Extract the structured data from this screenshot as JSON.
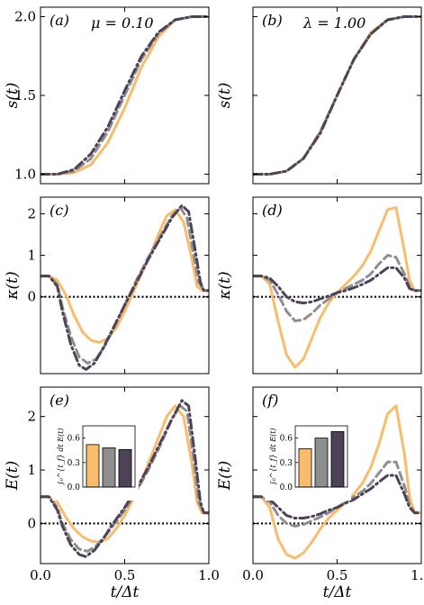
{
  "chart_data": [
    {
      "panel": "(a)",
      "annotation": "μ = 0.10",
      "type": "line",
      "ylabel": "s(t)",
      "xlim": [
        0,
        1
      ],
      "ylim": [
        0.94,
        2.06
      ],
      "yticks": [
        1.0,
        1.5,
        2.0
      ],
      "ytick_labels": [
        "1.0",
        "1.5",
        "2.0"
      ],
      "xticks": [
        0,
        0.5,
        1.0
      ],
      "xtick_labels": [],
      "zero_line": false,
      "series": [
        {
          "style": "orange-solid",
          "color": "#f9bc6c",
          "dash": "none",
          "width": 3.0,
          "x": [
            0,
            0.1,
            0.2,
            0.3,
            0.4,
            0.5,
            0.6,
            0.7,
            0.8,
            0.9,
            1.0
          ],
          "y": [
            1.0,
            1.0,
            1.01,
            1.06,
            1.2,
            1.42,
            1.68,
            1.87,
            1.98,
            2.0,
            2.0
          ]
        },
        {
          "style": "gray-dashed",
          "color": "#8e8e8e",
          "dash": "9,5",
          "width": 3.0,
          "x": [
            0,
            0.1,
            0.2,
            0.3,
            0.4,
            0.5,
            0.6,
            0.7,
            0.8,
            0.9,
            1.0
          ],
          "y": [
            1.0,
            1.0,
            1.02,
            1.1,
            1.27,
            1.5,
            1.73,
            1.89,
            1.98,
            2.0,
            2.0
          ]
        },
        {
          "style": "dark-dashdot",
          "color": "#4e4257",
          "dash": "10,4,2,4",
          "width": 3.0,
          "x": [
            0,
            0.1,
            0.2,
            0.3,
            0.4,
            0.5,
            0.6,
            0.7,
            0.8,
            0.9,
            1.0
          ],
          "y": [
            1.0,
            1.0,
            1.03,
            1.13,
            1.3,
            1.53,
            1.75,
            1.9,
            1.98,
            2.0,
            2.0
          ]
        }
      ]
    },
    {
      "panel": "(b)",
      "annotation": "λ = 1.00",
      "type": "line",
      "ylabel": "s(t)",
      "xlim": [
        0,
        1
      ],
      "ylim": [
        0.94,
        2.06
      ],
      "yticks": [
        1.0,
        1.5,
        2.0
      ],
      "ytick_labels": [],
      "xticks": [
        0,
        0.5,
        1.0
      ],
      "xtick_labels": [],
      "zero_line": false,
      "series": [
        {
          "style": "orange-solid",
          "color": "#f9bc6c",
          "dash": "none",
          "width": 3.0,
          "x": [
            0,
            0.1,
            0.2,
            0.3,
            0.4,
            0.5,
            0.6,
            0.7,
            0.8,
            0.9,
            1.0
          ],
          "y": [
            1.0,
            1.0,
            1.02,
            1.1,
            1.27,
            1.5,
            1.73,
            1.9,
            1.98,
            2.0,
            2.0
          ]
        },
        {
          "style": "gray-dashed",
          "color": "#8e8e8e",
          "dash": "9,5",
          "width": 3.0,
          "x": [
            0,
            0.1,
            0.2,
            0.3,
            0.4,
            0.5,
            0.6,
            0.7,
            0.8,
            0.9,
            1.0
          ],
          "y": [
            1.0,
            1.0,
            1.02,
            1.1,
            1.27,
            1.5,
            1.73,
            1.89,
            1.98,
            2.0,
            2.0
          ]
        },
        {
          "style": "dark-dashdot",
          "color": "#4e4257",
          "dash": "10,4,2,4",
          "width": 3.0,
          "x": [
            0,
            0.1,
            0.2,
            0.3,
            0.4,
            0.5,
            0.6,
            0.7,
            0.8,
            0.9,
            1.0
          ],
          "y": [
            1.0,
            1.0,
            1.02,
            1.1,
            1.26,
            1.5,
            1.73,
            1.89,
            1.98,
            2.0,
            2.0
          ]
        }
      ]
    },
    {
      "panel": "(c)",
      "type": "line",
      "ylabel": "κ(t)",
      "xlim": [
        0,
        1
      ],
      "ylim": [
        -1.85,
        2.4
      ],
      "yticks": [
        0,
        1,
        2
      ],
      "ytick_labels": [
        "0",
        "1",
        "2"
      ],
      "xticks": [
        0,
        0.5,
        1.0
      ],
      "xtick_labels": [],
      "zero_line": true,
      "series": [
        {
          "style": "orange-solid",
          "color": "#f9bc6c",
          "dash": "none",
          "width": 3.0,
          "x": [
            0,
            0.05,
            0.1,
            0.15,
            0.2,
            0.25,
            0.3,
            0.35,
            0.4,
            0.45,
            0.5,
            0.55,
            0.6,
            0.65,
            0.7,
            0.75,
            0.8,
            0.85,
            0.9,
            0.93,
            0.96,
            1.0
          ],
          "y": [
            0.5,
            0.5,
            0.4,
            0.05,
            -0.45,
            -0.85,
            -1.05,
            -1.1,
            -1.0,
            -0.75,
            -0.35,
            0.1,
            0.55,
            1.0,
            1.5,
            1.95,
            2.1,
            1.8,
            0.9,
            0.25,
            0.15,
            0.15
          ]
        },
        {
          "style": "gray-dashed",
          "color": "#8e8e8e",
          "dash": "9,5",
          "width": 3.0,
          "x": [
            0,
            0.05,
            0.1,
            0.13,
            0.18,
            0.23,
            0.28,
            0.33,
            0.38,
            0.43,
            0.5,
            0.57,
            0.64,
            0.71,
            0.78,
            0.83,
            0.87,
            0.91,
            0.94,
            0.97,
            1.0
          ],
          "y": [
            0.5,
            0.5,
            0.3,
            -0.25,
            -0.95,
            -1.45,
            -1.6,
            -1.5,
            -1.2,
            -0.8,
            -0.2,
            0.4,
            0.95,
            1.45,
            1.95,
            2.15,
            1.9,
            1.0,
            0.35,
            0.15,
            0.15
          ]
        },
        {
          "style": "dark-dashdot",
          "color": "#4e4257",
          "dash": "10,4,2,4",
          "width": 3.0,
          "x": [
            0,
            0.05,
            0.1,
            0.13,
            0.18,
            0.23,
            0.27,
            0.32,
            0.37,
            0.42,
            0.5,
            0.57,
            0.64,
            0.71,
            0.78,
            0.84,
            0.88,
            0.92,
            0.95,
            0.97,
            1.0
          ],
          "y": [
            0.5,
            0.5,
            0.25,
            -0.35,
            -1.15,
            -1.65,
            -1.75,
            -1.6,
            -1.25,
            -0.85,
            -0.2,
            0.35,
            0.9,
            1.4,
            1.9,
            2.2,
            2.05,
            1.1,
            0.35,
            0.15,
            0.15
          ]
        }
      ]
    },
    {
      "panel": "(d)",
      "type": "line",
      "ylabel": "κ(t)",
      "xlim": [
        0,
        1
      ],
      "ylim": [
        -1.85,
        2.4
      ],
      "yticks": [
        0,
        1,
        2
      ],
      "ytick_labels": [],
      "xticks": [
        0,
        0.5,
        1.0
      ],
      "xtick_labels": [],
      "zero_line": true,
      "series": [
        {
          "style": "orange-solid",
          "color": "#f9bc6c",
          "dash": "none",
          "width": 3.0,
          "x": [
            0,
            0.05,
            0.1,
            0.15,
            0.2,
            0.25,
            0.3,
            0.35,
            0.4,
            0.45,
            0.5,
            0.55,
            0.6,
            0.65,
            0.7,
            0.75,
            0.8,
            0.85,
            0.9,
            0.93,
            0.96,
            1.0
          ],
          "y": [
            0.5,
            0.5,
            0.3,
            -0.6,
            -1.4,
            -1.7,
            -1.5,
            -1.0,
            -0.5,
            -0.15,
            0.1,
            0.3,
            0.5,
            0.75,
            1.1,
            1.6,
            2.1,
            2.15,
            1.1,
            0.4,
            0.15,
            0.15
          ]
        },
        {
          "style": "gray-dashed",
          "color": "#8e8e8e",
          "dash": "9,5",
          "width": 3.0,
          "x": [
            0,
            0.05,
            0.1,
            0.15,
            0.2,
            0.25,
            0.3,
            0.35,
            0.4,
            0.45,
            0.5,
            0.55,
            0.6,
            0.65,
            0.7,
            0.75,
            0.8,
            0.85,
            0.9,
            0.93,
            0.96,
            1.0
          ],
          "y": [
            0.5,
            0.5,
            0.4,
            0.05,
            -0.35,
            -0.58,
            -0.55,
            -0.4,
            -0.2,
            -0.05,
            0.1,
            0.2,
            0.3,
            0.4,
            0.55,
            0.8,
            1.0,
            0.95,
            0.55,
            0.25,
            0.15,
            0.15
          ]
        },
        {
          "style": "dark-dashdot",
          "color": "#4e4257",
          "dash": "10,4,2,4",
          "width": 3.0,
          "x": [
            0,
            0.05,
            0.1,
            0.15,
            0.2,
            0.25,
            0.3,
            0.35,
            0.4,
            0.45,
            0.5,
            0.55,
            0.6,
            0.65,
            0.7,
            0.75,
            0.8,
            0.85,
            0.9,
            0.93,
            0.96,
            1.0
          ],
          "y": [
            0.5,
            0.5,
            0.45,
            0.25,
            0.0,
            -0.12,
            -0.15,
            -0.12,
            -0.05,
            0.02,
            0.1,
            0.15,
            0.22,
            0.3,
            0.4,
            0.55,
            0.7,
            0.7,
            0.45,
            0.2,
            0.15,
            0.15
          ]
        }
      ]
    },
    {
      "panel": "(e)",
      "type": "line",
      "ylabel": "E(t)",
      "xlim": [
        0,
        1
      ],
      "ylim": [
        -0.75,
        2.55
      ],
      "yticks": [
        0,
        1,
        2
      ],
      "ytick_labels": [
        "0",
        "1",
        "2"
      ],
      "xticks": [
        0,
        0.5,
        1.0
      ],
      "xtick_labels": [
        "0.0",
        "0.5",
        "1.0"
      ],
      "xlabel": "t/Δt",
      "zero_line": true,
      "series": [
        {
          "style": "orange-solid",
          "color": "#f9bc6c",
          "dash": "none",
          "width": 3.0,
          "x": [
            0,
            0.05,
            0.1,
            0.15,
            0.2,
            0.25,
            0.3,
            0.35,
            0.4,
            0.45,
            0.5,
            0.55,
            0.6,
            0.65,
            0.7,
            0.75,
            0.8,
            0.85,
            0.9,
            0.93,
            0.96,
            1.0
          ],
          "y": [
            0.5,
            0.5,
            0.4,
            0.12,
            -0.1,
            -0.25,
            -0.33,
            -0.35,
            -0.28,
            -0.1,
            0.15,
            0.45,
            0.8,
            1.2,
            1.6,
            2.0,
            2.2,
            2.0,
            1.1,
            0.4,
            0.2,
            0.2
          ]
        },
        {
          "style": "gray-dashed",
          "color": "#8e8e8e",
          "dash": "9,5",
          "width": 3.0,
          "x": [
            0,
            0.05,
            0.1,
            0.13,
            0.18,
            0.23,
            0.28,
            0.33,
            0.38,
            0.43,
            0.5,
            0.57,
            0.64,
            0.71,
            0.78,
            0.83,
            0.87,
            0.91,
            0.94,
            0.97,
            1.0
          ],
          "y": [
            0.5,
            0.5,
            0.3,
            0.0,
            -0.3,
            -0.48,
            -0.52,
            -0.42,
            -0.25,
            -0.05,
            0.25,
            0.6,
            1.0,
            1.45,
            1.95,
            2.2,
            2.1,
            1.2,
            0.4,
            0.2,
            0.2
          ]
        },
        {
          "style": "dark-dashdot",
          "color": "#4e4257",
          "dash": "10,4,2,4",
          "width": 3.0,
          "x": [
            0,
            0.05,
            0.1,
            0.13,
            0.18,
            0.23,
            0.27,
            0.32,
            0.37,
            0.42,
            0.5,
            0.57,
            0.64,
            0.71,
            0.78,
            0.84,
            0.88,
            0.92,
            0.95,
            0.97,
            1.0
          ],
          "y": [
            0.5,
            0.5,
            0.25,
            -0.05,
            -0.4,
            -0.58,
            -0.62,
            -0.5,
            -0.3,
            -0.05,
            0.3,
            0.65,
            1.05,
            1.5,
            1.95,
            2.3,
            2.2,
            1.2,
            0.4,
            0.2,
            0.2
          ]
        }
      ],
      "inset": {
        "type": "bar",
        "ylabel": "∫₀^{t_f} dt E(t)",
        "ylim": [
          0,
          0.75
        ],
        "yticks": [
          0.0,
          0.3,
          0.6
        ],
        "ytick_labels": [
          "0.0",
          "0.3",
          "0.6"
        ],
        "values": [
          0.52,
          0.48,
          0.46
        ],
        "colors": [
          "#f9bc6c",
          "#8e8e8e",
          "#4e4257"
        ]
      }
    },
    {
      "panel": "(f)",
      "type": "line",
      "ylabel": "E(t)",
      "xlim": [
        0,
        1
      ],
      "ylim": [
        -0.75,
        2.55
      ],
      "yticks": [
        0,
        1,
        2
      ],
      "ytick_labels": [],
      "xticks": [
        0,
        0.5,
        1.0
      ],
      "xtick_labels": [
        "0.0",
        "0.5",
        "1.0"
      ],
      "xlabel": "t/Δt",
      "zero_line": true,
      "series": [
        {
          "style": "orange-solid",
          "color": "#f9bc6c",
          "dash": "none",
          "width": 3.0,
          "x": [
            0,
            0.05,
            0.1,
            0.15,
            0.2,
            0.25,
            0.3,
            0.35,
            0.4,
            0.45,
            0.5,
            0.55,
            0.6,
            0.65,
            0.7,
            0.75,
            0.8,
            0.85,
            0.9,
            0.93,
            0.96,
            1.0
          ],
          "y": [
            0.5,
            0.5,
            0.3,
            -0.3,
            -0.58,
            -0.65,
            -0.55,
            -0.35,
            -0.1,
            0.1,
            0.25,
            0.4,
            0.55,
            0.75,
            1.05,
            1.5,
            2.05,
            2.2,
            1.3,
            0.5,
            0.2,
            0.2
          ]
        },
        {
          "style": "gray-dashed",
          "color": "#8e8e8e",
          "dash": "9,5",
          "width": 3.0,
          "x": [
            0,
            0.05,
            0.1,
            0.15,
            0.2,
            0.25,
            0.3,
            0.35,
            0.4,
            0.45,
            0.5,
            0.55,
            0.6,
            0.65,
            0.7,
            0.75,
            0.8,
            0.85,
            0.9,
            0.93,
            0.96,
            1.0
          ],
          "y": [
            0.5,
            0.5,
            0.4,
            0.15,
            0.0,
            -0.05,
            -0.02,
            0.05,
            0.12,
            0.2,
            0.3,
            0.4,
            0.5,
            0.6,
            0.75,
            0.95,
            1.15,
            1.15,
            0.7,
            0.35,
            0.2,
            0.2
          ]
        },
        {
          "style": "dark-dashdot",
          "color": "#4e4257",
          "dash": "10,4,2,4",
          "width": 3.0,
          "x": [
            0,
            0.05,
            0.1,
            0.15,
            0.2,
            0.25,
            0.3,
            0.35,
            0.4,
            0.45,
            0.5,
            0.55,
            0.6,
            0.65,
            0.7,
            0.75,
            0.8,
            0.85,
            0.9,
            0.93,
            0.96,
            1.0
          ],
          "y": [
            0.5,
            0.5,
            0.45,
            0.3,
            0.15,
            0.1,
            0.1,
            0.13,
            0.18,
            0.25,
            0.3,
            0.38,
            0.45,
            0.55,
            0.65,
            0.78,
            0.9,
            0.9,
            0.55,
            0.3,
            0.2,
            0.2
          ]
        }
      ],
      "inset": {
        "type": "bar",
        "ylabel": "∫₀^{t_f} dt E(t)",
        "ylim": [
          0,
          0.75
        ],
        "yticks": [
          0.0,
          0.3,
          0.6
        ],
        "ytick_labels": [
          "0.0",
          "0.3",
          "0.6"
        ],
        "values": [
          0.47,
          0.6,
          0.68
        ],
        "colors": [
          "#f9bc6c",
          "#8e8e8e",
          "#4e4257"
        ]
      }
    }
  ]
}
